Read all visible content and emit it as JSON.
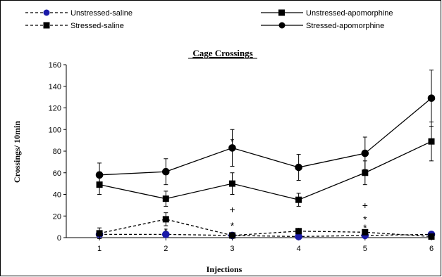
{
  "chart_data": {
    "type": "line",
    "title": "Cage Crossings",
    "xlabel": "Injections",
    "ylabel": "Crossings/ 10min",
    "categories": [
      "1",
      "2",
      "3",
      "4",
      "5",
      "6"
    ],
    "ylim": [
      0,
      160
    ],
    "yticks": [
      "0",
      "20",
      "40",
      "60",
      "80",
      "100",
      "120",
      "140",
      "160"
    ],
    "grid": false,
    "legend_position": "top",
    "series": [
      {
        "name": "Unstressed-saline",
        "values": [
          3,
          3,
          2,
          1,
          2,
          3
        ],
        "errors": [
          1,
          1,
          1,
          1,
          1,
          1
        ],
        "line_style": "dashed",
        "marker": "circle",
        "color": "#000000",
        "marker_color": "#1a1aa8"
      },
      {
        "name": "Unstressed-apomorphine",
        "values": [
          49,
          36,
          50,
          35,
          60,
          89
        ],
        "errors": [
          9,
          7,
          10,
          6,
          11,
          18
        ],
        "line_style": "solid",
        "marker": "square",
        "color": "#000000",
        "marker_color": "#000000"
      },
      {
        "name": "Stressed-saline",
        "values": [
          4,
          17,
          2,
          6,
          5,
          1
        ],
        "errors": [
          5,
          6,
          1,
          2,
          2,
          1
        ],
        "line_style": "dashed",
        "marker": "square",
        "color": "#000000",
        "marker_color": "#000000"
      },
      {
        "name": "Stressed-apomorphine",
        "values": [
          58,
          61,
          83,
          65,
          78,
          129
        ],
        "errors": [
          11,
          12,
          17,
          12,
          15,
          26
        ],
        "line_style": "solid",
        "marker": "circle",
        "color": "#000000",
        "marker_color": "#000000"
      }
    ],
    "annotations": [
      {
        "text": "*",
        "x": "2",
        "y": 8
      },
      {
        "text": "*",
        "x": "3",
        "y": 91
      },
      {
        "text": "+",
        "x": "3",
        "y": 26
      },
      {
        "text": "*",
        "x": "3",
        "y": 13
      },
      {
        "text": "*",
        "x": "4",
        "y": 8
      },
      {
        "text": "+",
        "x": "5",
        "y": 30
      },
      {
        "text": "*",
        "x": "5",
        "y": 19
      },
      {
        "text": "*",
        "x": "5",
        "y": 11
      }
    ]
  }
}
